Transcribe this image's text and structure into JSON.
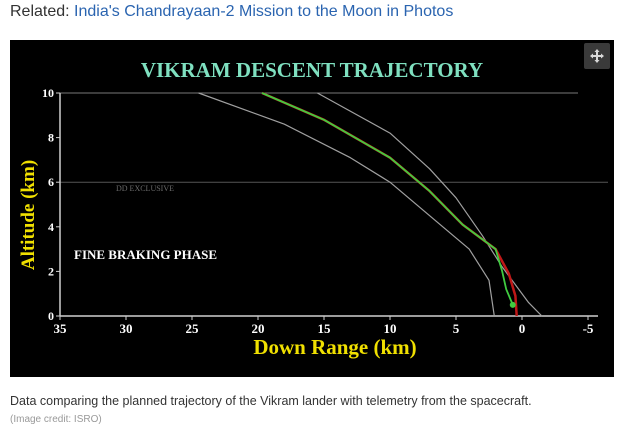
{
  "related": {
    "label": "Related:",
    "link_text": "India's Chandrayaan-2 Mission to the Moon in Photos"
  },
  "icons": {
    "expand": "expand-arrows-icon"
  },
  "chart_data": {
    "type": "line",
    "title": "VIKRAM DESCENT TRAJECTORY",
    "xlabel": "Down Range (km)",
    "ylabel": "Altitude (km)",
    "xlim": [
      35,
      -5
    ],
    "ylim": [
      0,
      10
    ],
    "x_ticks": [
      "35",
      "30",
      "25",
      "20",
      "15",
      "10",
      "5",
      "0",
      "-5"
    ],
    "y_ticks": [
      "0",
      "2",
      "4",
      "6",
      "8",
      "10"
    ],
    "grid": "horizontal at altitude 6 km",
    "annotations": [
      "FINE BRAKING PHASE",
      "DD EXCLUSIVE"
    ],
    "colors": {
      "title": "#7fe0c0",
      "axis_label": "#f0e000",
      "planned": "#c01818",
      "actual": "#40cc40",
      "bounds": "#a0a0a0"
    },
    "series": [
      {
        "role": "planned",
        "points": [
          [
            19.7,
            10
          ],
          [
            15,
            8.8
          ],
          [
            10,
            7.1
          ],
          [
            7,
            5.6
          ],
          [
            4.5,
            4.1
          ],
          [
            2,
            3.0
          ],
          [
            1,
            1.9
          ],
          [
            0.5,
            0.9
          ],
          [
            0.4,
            0
          ]
        ]
      },
      {
        "role": "actual",
        "points": [
          [
            19.7,
            10
          ],
          [
            15,
            8.8
          ],
          [
            10,
            7.1
          ],
          [
            7,
            5.6
          ],
          [
            4.5,
            4.1
          ],
          [
            2,
            3.0
          ],
          [
            1.5,
            2.0
          ],
          [
            1.2,
            1.2
          ],
          [
            0.7,
            0.5
          ]
        ]
      },
      {
        "role": "upper-bound",
        "points": [
          [
            15.5,
            10
          ],
          [
            10,
            8.2
          ],
          [
            7,
            6.6
          ],
          [
            5,
            5.3
          ],
          [
            3,
            3.6
          ],
          [
            1.5,
            2.2
          ],
          [
            -0.5,
            0.6
          ],
          [
            -1.5,
            0
          ]
        ]
      },
      {
        "role": "lower-bound",
        "points": [
          [
            24.5,
            10
          ],
          [
            18,
            8.6
          ],
          [
            13,
            7.1
          ],
          [
            10,
            6.0
          ],
          [
            6,
            4.0
          ],
          [
            4,
            3.0
          ],
          [
            2.5,
            1.6
          ],
          [
            2.1,
            0
          ]
        ]
      }
    ]
  },
  "caption": {
    "text": "Data comparing the planned trajectory of the Vikram lander with telemetry from the spacecraft.",
    "credit": "(Image credit: ISRO)"
  }
}
